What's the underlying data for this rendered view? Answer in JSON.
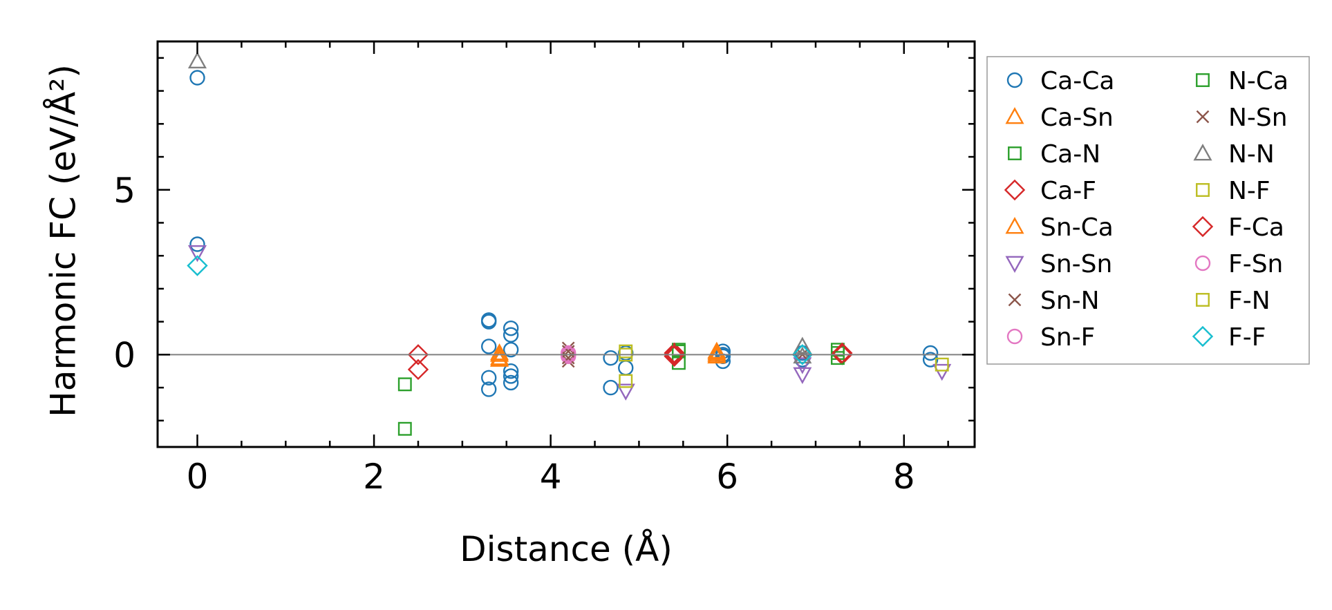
{
  "chart_data": {
    "type": "scatter",
    "xlabel": "Distance (Å)",
    "ylabel": "Harmonic FC (eV/Å²)",
    "xlim": [
      -0.45,
      8.8
    ],
    "ylim": [
      -2.8,
      9.5
    ],
    "xticks": [
      0,
      2,
      4,
      6,
      8
    ],
    "xtick_labels": [
      "0",
      "2",
      "4",
      "6",
      "8"
    ],
    "yticks": [
      0,
      5
    ],
    "ytick_labels": [
      "0",
      "5"
    ],
    "zero_line": 0,
    "legend_position": "outside-right",
    "series": [
      {
        "name": "Ca-Ca",
        "marker": "circle",
        "color": "#1f77b4",
        "points": [
          [
            0,
            8.4
          ],
          [
            0,
            3.35
          ],
          [
            3.3,
            1.05
          ],
          [
            3.3,
            1.0
          ],
          [
            3.3,
            0.25
          ],
          [
            3.3,
            -0.7
          ],
          [
            3.3,
            -1.05
          ],
          [
            3.55,
            0.8
          ],
          [
            3.55,
            0.6
          ],
          [
            3.55,
            0.15
          ],
          [
            3.55,
            -0.5
          ],
          [
            3.55,
            -0.65
          ],
          [
            3.55,
            -0.85
          ],
          [
            4.68,
            -0.1
          ],
          [
            4.68,
            -1.0
          ],
          [
            4.85,
            0.05
          ],
          [
            4.85,
            -0.4
          ],
          [
            5.95,
            0.1
          ],
          [
            5.95,
            0.0
          ],
          [
            5.95,
            -0.05
          ],
          [
            5.95,
            -0.2
          ],
          [
            6.85,
            0.05
          ],
          [
            6.85,
            -0.15
          ],
          [
            8.3,
            0.05
          ],
          [
            8.3,
            -0.15
          ]
        ]
      },
      {
        "name": "Ca-Sn",
        "marker": "triangle-up",
        "color": "#ff7f0e",
        "points": [
          [
            3.42,
            0.05
          ],
          [
            3.42,
            -0.1
          ],
          [
            5.88,
            0.1
          ],
          [
            5.88,
            0.0
          ]
        ]
      },
      {
        "name": "Ca-N",
        "marker": "square",
        "color": "#2ca02c",
        "points": [
          [
            2.35,
            -0.9
          ],
          [
            2.35,
            -2.25
          ],
          [
            5.45,
            0.15
          ],
          [
            5.45,
            -0.25
          ],
          [
            7.25,
            0.05
          ]
        ]
      },
      {
        "name": "Ca-F",
        "marker": "diamond",
        "color": "#d62728",
        "points": [
          [
            2.5,
            0.0
          ],
          [
            2.5,
            -0.45
          ],
          [
            5.4,
            0.05
          ],
          [
            5.4,
            -0.05
          ],
          [
            7.3,
            0.0
          ]
        ]
      },
      {
        "name": "Sn-Ca",
        "marker": "triangle-up",
        "color": "#ff7f0e",
        "points": [
          [
            3.42,
            0.0
          ],
          [
            3.42,
            -0.15
          ],
          [
            5.88,
            0.05
          ],
          [
            5.88,
            -0.05
          ]
        ]
      },
      {
        "name": "Sn-Sn",
        "marker": "triangle-down",
        "color": "#9467bd",
        "points": [
          [
            0,
            3.1
          ],
          [
            4.85,
            -1.1
          ],
          [
            6.85,
            -0.3
          ],
          [
            6.85,
            -0.6
          ],
          [
            8.43,
            -0.5
          ]
        ]
      },
      {
        "name": "Sn-N",
        "marker": "x",
        "color": "#8c564b",
        "points": [
          [
            4.2,
            0.2
          ],
          [
            4.2,
            -0.2
          ],
          [
            6.85,
            0.0
          ]
        ]
      },
      {
        "name": "Sn-F",
        "marker": "circle",
        "color": "#e377c2",
        "points": [
          [
            4.2,
            0.05
          ],
          [
            4.2,
            -0.05
          ]
        ]
      },
      {
        "name": "N-Ca",
        "marker": "square",
        "color": "#2ca02c",
        "points": [
          [
            5.45,
            0.1
          ],
          [
            7.25,
            0.15
          ],
          [
            7.25,
            -0.1
          ]
        ]
      },
      {
        "name": "N-Sn",
        "marker": "x",
        "color": "#8c564b",
        "points": [
          [
            4.2,
            0.1
          ],
          [
            4.2,
            -0.1
          ]
        ]
      },
      {
        "name": "N-N",
        "marker": "triangle-up",
        "color": "#7f7f7f",
        "points": [
          [
            0,
            8.9
          ],
          [
            6.85,
            0.25
          ],
          [
            6.85,
            -0.05
          ]
        ]
      },
      {
        "name": "N-F",
        "marker": "square",
        "color": "#bcbd22",
        "points": [
          [
            4.85,
            0.1
          ],
          [
            4.85,
            -0.8
          ],
          [
            8.43,
            -0.3
          ]
        ]
      },
      {
        "name": "F-Ca",
        "marker": "diamond",
        "color": "#d62728",
        "points": [
          [
            5.4,
            0.0
          ],
          [
            7.3,
            0.05
          ]
        ]
      },
      {
        "name": "F-Sn",
        "marker": "circle",
        "color": "#e377c2",
        "points": [
          [
            4.2,
            0.0
          ]
        ]
      },
      {
        "name": "F-N",
        "marker": "square",
        "color": "#bcbd22",
        "points": [
          [
            4.85,
            0.0
          ]
        ]
      },
      {
        "name": "F-F",
        "marker": "diamond",
        "color": "#17becf",
        "points": [
          [
            0,
            2.7
          ],
          [
            6.85,
            0.0
          ]
        ]
      }
    ]
  }
}
